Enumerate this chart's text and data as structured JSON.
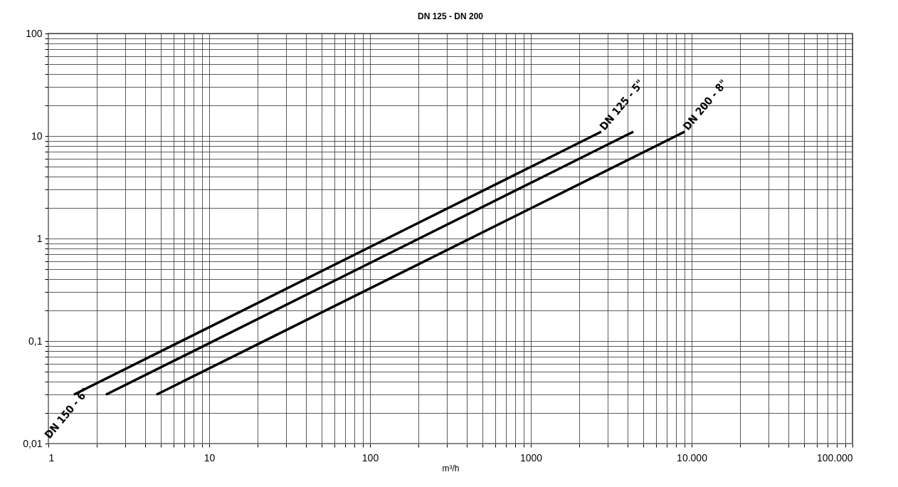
{
  "chart_data": {
    "type": "line",
    "title": "DN 125 - DN 200",
    "xlabel": "m³/h",
    "log": "xy",
    "grid": true,
    "xlim": [
      1,
      100000
    ],
    "ylim": [
      0.01,
      100
    ],
    "xticks": [
      1,
      {
        "value": 2,
        "label": null
      },
      {
        "value": 3,
        "label": null
      },
      {
        "value": 4,
        "label": null
      },
      {
        "value": 5,
        "label": null
      },
      {
        "value": 6,
        "label": null
      },
      {
        "value": 7,
        "label": null
      },
      {
        "value": 8,
        "label": null
      },
      {
        "value": 9,
        "label": null
      },
      10,
      {
        "value": 20,
        "label": null
      },
      {
        "value": 30,
        "label": null
      },
      {
        "value": 40,
        "label": null
      },
      {
        "value": 50,
        "label": null
      },
      {
        "value": 60,
        "label": null
      },
      {
        "value": 70,
        "label": null
      },
      {
        "value": 80,
        "label": null
      },
      {
        "value": 90,
        "label": null
      },
      100,
      {
        "value": 200,
        "label": null
      },
      {
        "value": 300,
        "label": null
      },
      {
        "value": 400,
        "label": null
      },
      {
        "value": 500,
        "label": null
      },
      {
        "value": 600,
        "label": null
      },
      {
        "value": 700,
        "label": null
      },
      {
        "value": 800,
        "label": null
      },
      {
        "value": 900,
        "label": null
      },
      1000,
      {
        "value": 2000,
        "label": null
      },
      {
        "value": 3000,
        "label": null
      },
      {
        "value": 4000,
        "label": null
      },
      {
        "value": 5000,
        "label": null
      },
      {
        "value": 6000,
        "label": null
      },
      {
        "value": 7000,
        "label": null
      },
      {
        "value": 8000,
        "label": null
      },
      {
        "value": 9000,
        "label": null
      },
      {
        "value": 10000,
        "label": "10.000"
      },
      {
        "value": 20000,
        "label": null
      },
      {
        "value": 30000,
        "label": null
      },
      {
        "value": 40000,
        "label": null
      },
      {
        "value": 50000,
        "label": null
      },
      {
        "value": 60000,
        "label": null
      },
      {
        "value": 70000,
        "label": null
      },
      {
        "value": 80000,
        "label": null
      },
      {
        "value": 90000,
        "label": null
      },
      {
        "value": 100000,
        "label": "100.000"
      }
    ],
    "yticks": [
      {
        "value": 0.01,
        "label": "0,01"
      },
      {
        "value": 0.02,
        "label": null
      },
      {
        "value": 0.03,
        "label": null
      },
      {
        "value": 0.04,
        "label": null
      },
      {
        "value": 0.05,
        "label": null
      },
      {
        "value": 0.06,
        "label": null
      },
      {
        "value": 0.07,
        "label": null
      },
      {
        "value": 0.08,
        "label": null
      },
      {
        "value": 0.09,
        "label": null
      },
      {
        "value": 0.1,
        "label": "0,1"
      },
      {
        "value": 0.2,
        "label": null
      },
      {
        "value": 0.3,
        "label": null
      },
      {
        "value": 0.4,
        "label": null
      },
      {
        "value": 0.5,
        "label": null
      },
      {
        "value": 0.6,
        "label": null
      },
      {
        "value": 0.7,
        "label": null
      },
      {
        "value": 0.8,
        "label": null
      },
      {
        "value": 0.9,
        "label": null
      },
      1,
      {
        "value": 2,
        "label": null
      },
      {
        "value": 3,
        "label": null
      },
      {
        "value": 4,
        "label": null
      },
      {
        "value": 5,
        "label": null
      },
      {
        "value": 6,
        "label": null
      },
      {
        "value": 7,
        "label": null
      },
      {
        "value": 8,
        "label": null
      },
      {
        "value": 9,
        "label": null
      },
      10,
      {
        "value": 20,
        "label": null
      },
      {
        "value": 30,
        "label": null
      },
      {
        "value": 40,
        "label": null
      },
      {
        "value": 50,
        "label": null
      },
      {
        "value": 60,
        "label": null
      },
      {
        "value": 70,
        "label": null
      },
      {
        "value": 80,
        "label": null
      },
      {
        "value": 90,
        "label": null
      },
      100
    ],
    "series": [
      {
        "color": "#000000",
        "x": [
          1.44,
          2740
        ],
        "values": [
          0.03,
          11
        ]
      },
      {
        "color": "#000000",
        "x": [
          2.28,
          4340
        ],
        "values": [
          0.03,
          11
        ]
      },
      {
        "color": "#000000",
        "x": [
          4.7,
          9040
        ],
        "values": [
          0.03,
          11
        ]
      }
    ],
    "annotations": [
      {
        "text": "DN 125 - 5\"",
        "x": 2740,
        "y": 11
      },
      {
        "text": "DN 200 - 8\"",
        "x": 9040,
        "y": 11
      },
      "DN 150 - 6\""
    ]
  }
}
